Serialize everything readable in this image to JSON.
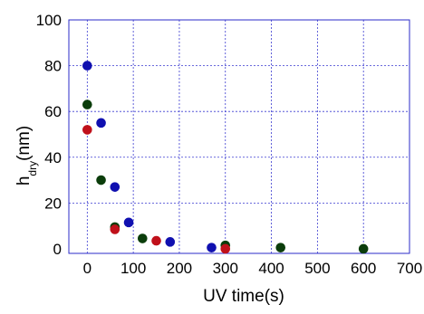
{
  "chart_data": {
    "type": "scatter",
    "xlabel": "UV time(s)",
    "ylabel": {
      "main": "h",
      "subscript": "dry",
      "suffix": "(nm)"
    },
    "xlim": [
      -40,
      700
    ],
    "ylim": [
      -2,
      100
    ],
    "xticks": [
      0,
      100,
      200,
      300,
      400,
      500,
      600,
      700
    ],
    "yticks": [
      0,
      20,
      40,
      60,
      80,
      100
    ],
    "xgrid": [
      0,
      100,
      200,
      300,
      400,
      500,
      600
    ],
    "ygrid": [
      20,
      40,
      60,
      80
    ],
    "grid": true,
    "grid_color": "#3a3ad0",
    "frame_color": "#2b2bc8",
    "series": [
      {
        "color": "#1010b0",
        "points": [
          [
            0,
            80
          ],
          [
            30,
            55
          ],
          [
            60,
            27
          ],
          [
            90,
            11.5
          ],
          [
            180,
            3
          ],
          [
            270,
            0.5
          ]
        ]
      },
      {
        "color": "#0b3d0b",
        "points": [
          [
            0,
            63
          ],
          [
            30,
            30
          ],
          [
            60,
            9.5
          ],
          [
            120,
            4.5
          ],
          [
            300,
            1.5
          ],
          [
            420,
            0.5
          ],
          [
            600,
            0
          ]
        ]
      },
      {
        "color": "#c0101a",
        "points": [
          [
            0,
            52
          ],
          [
            60,
            8.5
          ],
          [
            150,
            3.5
          ],
          [
            300,
            0
          ]
        ]
      }
    ]
  }
}
